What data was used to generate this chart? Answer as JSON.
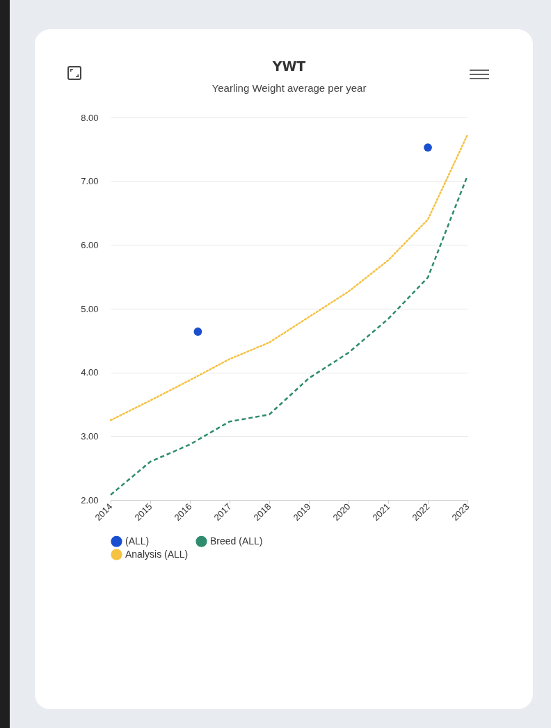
{
  "chart_data": {
    "type": "line",
    "title": "YWT",
    "subtitle": "Yearling Weight average per year",
    "x": [
      2014,
      2015,
      2016,
      2017,
      2018,
      2019,
      2020,
      2021,
      2022,
      2023
    ],
    "xlim": [
      2014,
      2023
    ],
    "xticks": [
      2014,
      2015,
      2016,
      2017,
      2018,
      2019,
      2020,
      2021,
      2022,
      2023
    ],
    "ylim": [
      2,
      8
    ],
    "yticks": [
      {
        "value": 2,
        "label": "2.00"
      },
      {
        "value": 3,
        "label": "3.00"
      },
      {
        "value": 4,
        "label": "4.00"
      },
      {
        "value": 5,
        "label": "5.00"
      },
      {
        "value": 6,
        "label": "6.00"
      },
      {
        "value": 7,
        "label": "7.00"
      },
      {
        "value": 8,
        "label": "8.00"
      }
    ],
    "grid": "y",
    "legend": "bottom",
    "series": [
      {
        "name": "(ALL)",
        "type": "scatter",
        "marker": "circle",
        "color": "#1a4fd0",
        "x": [
          2016.2,
          2022
        ],
        "values": [
          4.64,
          7.53
        ]
      },
      {
        "name": "Breed (ALL)",
        "type": "line",
        "line_style": "dashed",
        "color": "#2e8b6e",
        "values": [
          2.08,
          2.6,
          2.87,
          3.23,
          3.34,
          3.91,
          4.31,
          4.84,
          5.49,
          7.09
        ]
      },
      {
        "name": "Analysis (ALL)",
        "type": "line",
        "line_style": "dotted",
        "color": "#f5c242",
        "values": [
          3.25,
          3.56,
          3.88,
          4.21,
          4.47,
          4.87,
          5.27,
          5.76,
          6.4,
          7.73
        ]
      }
    ]
  }
}
